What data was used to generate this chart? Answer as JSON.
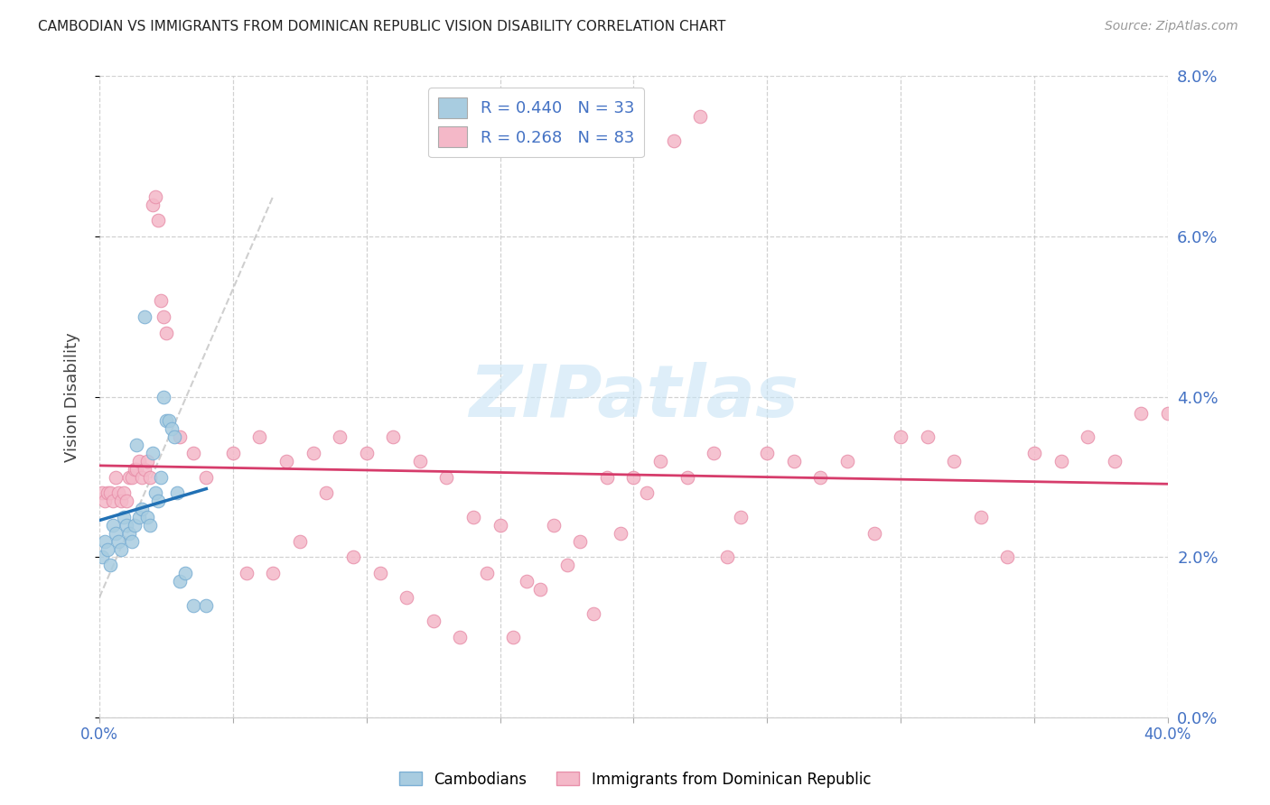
{
  "title": "CAMBODIAN VS IMMIGRANTS FROM DOMINICAN REPUBLIC VISION DISABILITY CORRELATION CHART",
  "source": "Source: ZipAtlas.com",
  "ylabel": "Vision Disability",
  "xlim": [
    0.0,
    0.4
  ],
  "ylim": [
    0.0,
    0.08
  ],
  "xticks": [
    0.0,
    0.05,
    0.1,
    0.15,
    0.2,
    0.25,
    0.3,
    0.35,
    0.4
  ],
  "xtick_labels": [
    "0.0%",
    "",
    "",
    "",
    "",
    "",
    "",
    "",
    "40.0%"
  ],
  "yticks": [
    0.0,
    0.02,
    0.04,
    0.06,
    0.08
  ],
  "ytick_labels_right": [
    "0.0%",
    "2.0%",
    "4.0%",
    "6.0%",
    "8.0%"
  ],
  "blue_R": 0.44,
  "blue_N": 33,
  "pink_R": 0.268,
  "pink_N": 83,
  "blue_color": "#a8cce0",
  "pink_color": "#f4b8c8",
  "blue_edge_color": "#7bafd4",
  "pink_edge_color": "#e890aa",
  "blue_line_color": "#2171b5",
  "pink_line_color": "#d63c6b",
  "dashed_line_color": "#bbbbbb",
  "title_color": "#222222",
  "axis_label_color": "#444444",
  "tick_label_color": "#4472c4",
  "source_color": "#999999",
  "watermark_color": "#c8e4f5",
  "watermark": "ZIPatlas",
  "legend_label_blue": "Cambodians",
  "legend_label_pink": "Immigrants from Dominican Republic",
  "blue_scatter_x": [
    0.001,
    0.002,
    0.003,
    0.004,
    0.005,
    0.006,
    0.007,
    0.008,
    0.009,
    0.01,
    0.011,
    0.012,
    0.013,
    0.014,
    0.015,
    0.016,
    0.017,
    0.018,
    0.019,
    0.02,
    0.021,
    0.022,
    0.023,
    0.024,
    0.025,
    0.026,
    0.027,
    0.028,
    0.029,
    0.03,
    0.032,
    0.035,
    0.04
  ],
  "blue_scatter_y": [
    0.02,
    0.022,
    0.021,
    0.019,
    0.024,
    0.023,
    0.022,
    0.021,
    0.025,
    0.024,
    0.023,
    0.022,
    0.024,
    0.034,
    0.025,
    0.026,
    0.05,
    0.025,
    0.024,
    0.033,
    0.028,
    0.027,
    0.03,
    0.04,
    0.037,
    0.037,
    0.036,
    0.035,
    0.028,
    0.017,
    0.018,
    0.014,
    0.014
  ],
  "pink_scatter_x": [
    0.001,
    0.002,
    0.003,
    0.004,
    0.005,
    0.006,
    0.007,
    0.008,
    0.009,
    0.01,
    0.011,
    0.012,
    0.013,
    0.014,
    0.015,
    0.016,
    0.017,
    0.018,
    0.019,
    0.02,
    0.021,
    0.022,
    0.023,
    0.024,
    0.025,
    0.03,
    0.035,
    0.04,
    0.05,
    0.06,
    0.07,
    0.08,
    0.09,
    0.1,
    0.11,
    0.12,
    0.13,
    0.14,
    0.15,
    0.16,
    0.17,
    0.18,
    0.19,
    0.2,
    0.21,
    0.22,
    0.23,
    0.24,
    0.25,
    0.26,
    0.27,
    0.28,
    0.29,
    0.3,
    0.31,
    0.32,
    0.33,
    0.34,
    0.35,
    0.36,
    0.37,
    0.38,
    0.39,
    0.4,
    0.055,
    0.065,
    0.075,
    0.085,
    0.095,
    0.105,
    0.115,
    0.125,
    0.135,
    0.145,
    0.155,
    0.165,
    0.175,
    0.185,
    0.195,
    0.205,
    0.215,
    0.225,
    0.235
  ],
  "pink_scatter_y": [
    0.028,
    0.027,
    0.028,
    0.028,
    0.027,
    0.03,
    0.028,
    0.027,
    0.028,
    0.027,
    0.03,
    0.03,
    0.031,
    0.031,
    0.032,
    0.03,
    0.031,
    0.032,
    0.03,
    0.064,
    0.065,
    0.062,
    0.052,
    0.05,
    0.048,
    0.035,
    0.033,
    0.03,
    0.033,
    0.035,
    0.032,
    0.033,
    0.035,
    0.033,
    0.035,
    0.032,
    0.03,
    0.025,
    0.024,
    0.017,
    0.024,
    0.022,
    0.03,
    0.03,
    0.032,
    0.03,
    0.033,
    0.025,
    0.033,
    0.032,
    0.03,
    0.032,
    0.023,
    0.035,
    0.035,
    0.032,
    0.025,
    0.02,
    0.033,
    0.032,
    0.035,
    0.032,
    0.038,
    0.038,
    0.018,
    0.018,
    0.022,
    0.028,
    0.02,
    0.018,
    0.015,
    0.012,
    0.01,
    0.018,
    0.01,
    0.016,
    0.019,
    0.013,
    0.023,
    0.028,
    0.072,
    0.075,
    0.02
  ]
}
